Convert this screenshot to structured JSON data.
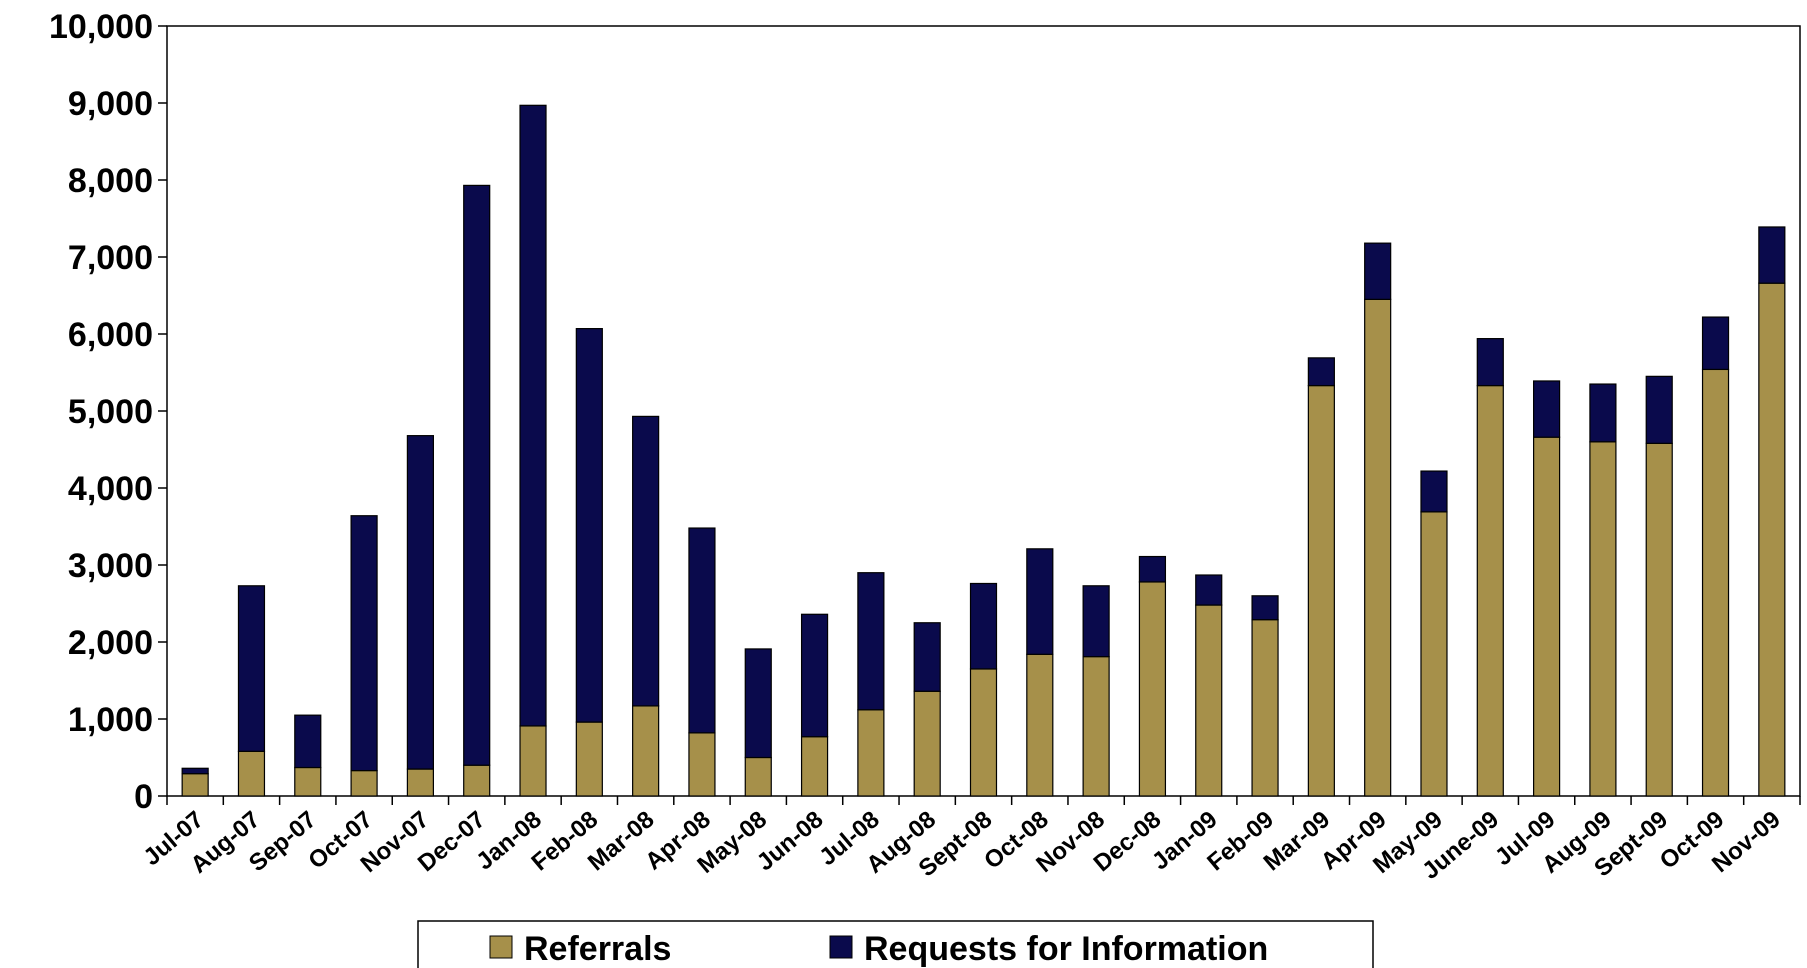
{
  "chart_data": {
    "type": "bar",
    "stacked": true,
    "title": "",
    "xlabel": "",
    "ylabel": "",
    "ylim": [
      0,
      10000
    ],
    "yticks": [
      "0",
      "1,000",
      "2,000",
      "3,000",
      "4,000",
      "5,000",
      "6,000",
      "7,000",
      "8,000",
      "9,000",
      "10,000"
    ],
    "grid": false,
    "legend_position": "bottom",
    "categories": [
      "Jul-07",
      "Aug-07",
      "Sep-07",
      "Oct-07",
      "Nov-07",
      "Dec-07",
      "Jan-08",
      "Feb-08",
      "Mar-08",
      "Apr-08",
      "May-08",
      "Jun-08",
      "Jul-08",
      "Aug-08",
      "Sept-08",
      "Oct-08",
      "Nov-08",
      "Dec-08",
      "Jan-09",
      "Feb-09",
      "Mar-09",
      "Apr-09",
      "May-09",
      "June-09",
      "Jul-09",
      "Aug-09",
      "Sept-09",
      "Oct-09",
      "Nov-09"
    ],
    "series": [
      {
        "name": "Referrals",
        "color": "#A6904A",
        "values": [
          290,
          580,
          370,
          330,
          350,
          400,
          910,
          960,
          1170,
          820,
          500,
          770,
          1120,
          1360,
          1650,
          1840,
          1810,
          2780,
          2480,
          2290,
          5330,
          6450,
          3690,
          5330,
          4660,
          4600,
          4580,
          5540,
          6660
        ]
      },
      {
        "name": "Requests for Information",
        "color": "#0A0A4C",
        "values": [
          70,
          2150,
          680,
          3310,
          4330,
          7530,
          8060,
          5110,
          3760,
          2660,
          1410,
          1590,
          1780,
          890,
          1110,
          1370,
          920,
          330,
          390,
          310,
          360,
          730,
          530,
          610,
          730,
          750,
          870,
          680,
          730
        ]
      }
    ]
  }
}
